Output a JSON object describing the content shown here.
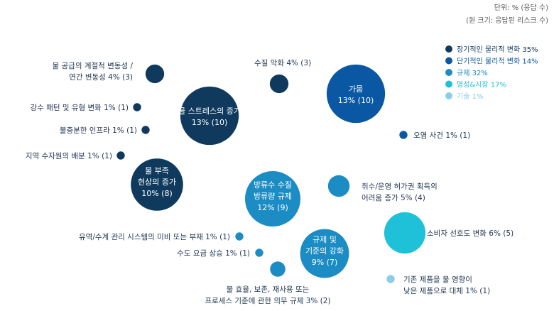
{
  "header": {
    "unit": "단위: % (응답 수)",
    "size_note": "(원 크기: 응답된 리스크 수)"
  },
  "legend": [
    {
      "label": "장기적인 물리적 변화 35%",
      "color": "#0f3a5e"
    },
    {
      "label": "단기적인 물리적 변화 14%",
      "color": "#0a58a4"
    },
    {
      "label": "규제 32%",
      "color": "#1b8cc4"
    },
    {
      "label": "명성&시장 17%",
      "color": "#1fc1d8"
    },
    {
      "label": "기술 1%",
      "color": "#8ecbe8"
    }
  ],
  "chart_data": {
    "type": "bubble",
    "unit": "% (응답 수)",
    "size_encoding": "원 크기: 응답된 리스크 수",
    "legend_position": "top-right",
    "categories": [
      {
        "name": "장기적인 물리적 변화",
        "percent": 35
      },
      {
        "name": "단기적인 물리적 변화",
        "percent": 14
      },
      {
        "name": "규제",
        "percent": 32
      },
      {
        "name": "명성&시장",
        "percent": 17
      },
      {
        "name": "기술",
        "percent": 1
      }
    ],
    "bubbles": [
      {
        "label": [
          "물 스트레스의 증가",
          "13% (10)"
        ],
        "category": "장기적인 물리적 변화",
        "percent": 13,
        "count": 10,
        "label_inside": true
      },
      {
        "label": [
          "물 부족",
          "현상의 증가",
          "10% (8)"
        ],
        "category": "장기적인 물리적 변화",
        "percent": 10,
        "count": 8,
        "label_inside": true
      },
      {
        "label": [
          "물 공급의 계절적 변동성 /",
          "연간 변동성 4% (3)"
        ],
        "category": "장기적인 물리적 변화",
        "percent": 4,
        "count": 3,
        "label_inside": false
      },
      {
        "label": [
          "수질 악화  4% (3)"
        ],
        "category": "장기적인 물리적 변화",
        "percent": 4,
        "count": 3,
        "label_inside": false
      },
      {
        "label": [
          "강수 패턴 및 유형 변화  1% (1)"
        ],
        "category": "장기적인 물리적 변화",
        "percent": 1,
        "count": 1,
        "label_inside": false
      },
      {
        "label": [
          "불충분한 인프라  1% (1)"
        ],
        "category": "장기적인 물리적 변화",
        "percent": 1,
        "count": 1,
        "label_inside": false
      },
      {
        "label": [
          "지역 수자원의 배분  1% (1)"
        ],
        "category": "장기적인 물리적 변화",
        "percent": 1,
        "count": 1,
        "label_inside": false
      },
      {
        "label": [
          "가뭄",
          "13% (10)"
        ],
        "category": "단기적인 물리적 변화",
        "percent": 13,
        "count": 10,
        "label_inside": true
      },
      {
        "label": [
          "오염 사건  1% (1)"
        ],
        "category": "단기적인 물리적 변화",
        "percent": 1,
        "count": 1,
        "label_inside": false
      },
      {
        "label": [
          "방류수 수질",
          "방류량 규제",
          "12% (9)"
        ],
        "category": "규제",
        "percent": 12,
        "count": 9,
        "label_inside": true
      },
      {
        "label": [
          "규제 및",
          "기준의 강화",
          "9% (7)"
        ],
        "category": "규제",
        "percent": 9,
        "count": 7,
        "label_inside": true
      },
      {
        "label": [
          "취수/운영 허가권 획득의",
          "어려움 증가 5% (4)"
        ],
        "category": "규제",
        "percent": 5,
        "count": 4,
        "label_inside": false
      },
      {
        "label": [
          "물 효율, 보존, 재사용 또는",
          "프로세스 기준에 관한 의무 규제 3% (2)"
        ],
        "category": "규제",
        "percent": 3,
        "count": 2,
        "label_inside": false
      },
      {
        "label": [
          "유역/수계 관리 시스템의 미비 또는 부재 1% (1)"
        ],
        "category": "규제",
        "percent": 1,
        "count": 1,
        "label_inside": false
      },
      {
        "label": [
          "수도 요금 상승  1% (1)"
        ],
        "category": "규제",
        "percent": 1,
        "count": 1,
        "label_inside": false
      },
      {
        "label": [
          "소비자 선호도 변화  6% (5)"
        ],
        "category": "명성&시장",
        "percent": 6,
        "count": 5,
        "label_inside": false
      },
      {
        "label": [
          "기존 제품을 물 영향이",
          "낮은 제품으로 대체 1% (1)"
        ],
        "category": "기술",
        "percent": 1,
        "count": 1,
        "label_inside": false
      }
    ]
  }
}
